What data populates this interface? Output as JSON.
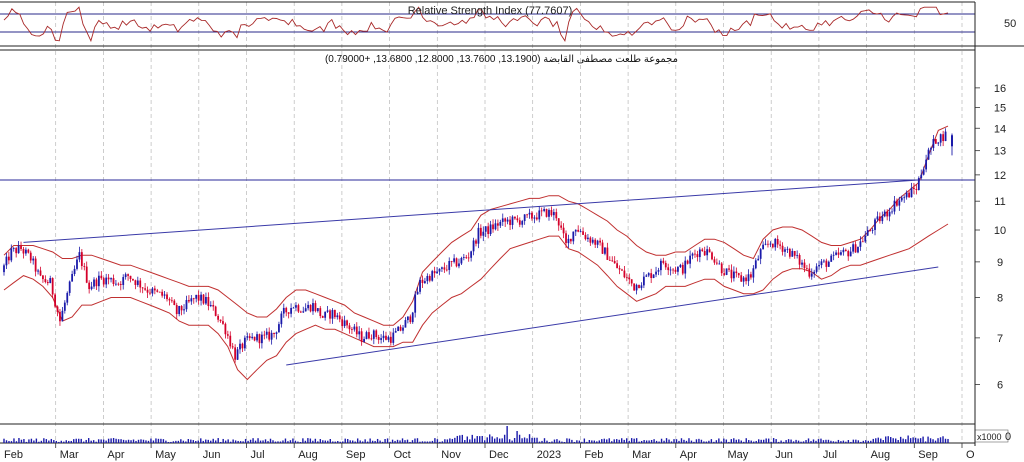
{
  "chart_data": {
    "type": "candlestick",
    "rsi_panel": {
      "title": "Relative Strength Index (77.7607)",
      "value": 77.7607,
      "level_tick": "50",
      "ylim": [
        0,
        100
      ],
      "levels": [
        30,
        70
      ]
    },
    "price_panel": {
      "title": "مجموعة طلعت مصطفى القابضة (13.1900, 13.7600, 12.8000, 13.6800, +0.79000)",
      "last_bar": {
        "open": 13.19,
        "high": 13.76,
        "low": 12.8,
        "close": 13.68,
        "change": 0.79
      },
      "scale": "log",
      "ylim": [
        5.3,
        17.2
      ],
      "y_ticks": [
        "16",
        "15",
        "14",
        "13",
        "12",
        "11",
        "10",
        "9",
        "8",
        "7",
        "6"
      ],
      "horizontal_line": 11.8,
      "trendlines": [
        {
          "name": "upper",
          "from": [
            2,
            9.6
          ],
          "to": [
            94,
            11.8
          ]
        },
        {
          "name": "lower",
          "from": [
            29,
            6.4
          ],
          "to": [
            96,
            8.85
          ]
        }
      ],
      "closes": [
        8.7,
        9.3,
        9.4,
        9.1,
        8.5,
        8.4,
        7.4,
        8.3,
        9.2,
        8.3,
        8.5,
        8.5,
        8.4,
        8.6,
        8.4,
        8.2,
        8.1,
        8.0,
        7.6,
        7.8,
        8.0,
        7.9,
        7.6,
        7.2,
        6.6,
        6.9,
        7.0,
        7.0,
        7.1,
        7.6,
        7.8,
        7.7,
        7.8,
        7.5,
        7.6,
        7.4,
        7.2,
        7.0,
        7.1,
        7.0,
        7.0,
        7.2,
        7.5,
        8.4,
        8.6,
        8.7,
        8.9,
        9.0,
        9.2,
        9.9,
        10.0,
        10.2,
        10.3,
        10.3,
        10.4,
        10.5,
        10.6,
        10.5,
        9.5,
        10.1,
        9.8,
        9.6,
        9.3,
        8.9,
        8.6,
        8.3,
        8.5,
        8.7,
        9.0,
        8.8,
        8.8,
        9.2,
        9.4,
        9.2,
        8.8,
        8.6,
        8.5,
        8.6,
        9.3,
        9.6,
        9.5,
        9.3,
        9.0,
        8.7,
        8.9,
        9.0,
        9.2,
        9.3,
        9.5,
        9.9,
        10.3,
        10.6,
        11.0,
        11.2,
        11.5,
        12.7,
        13.5,
        13.7
      ],
      "bollinger_upper": [
        9.2,
        9.5,
        9.5,
        9.5,
        9.4,
        9.3,
        9.1,
        9.1,
        9.2,
        9.2,
        9.1,
        9.0,
        8.9,
        8.9,
        8.8,
        8.7,
        8.6,
        8.5,
        8.4,
        8.3,
        8.3,
        8.3,
        8.2,
        8.0,
        7.8,
        7.6,
        7.5,
        7.5,
        7.7,
        8.0,
        8.2,
        8.2,
        8.1,
        8.0,
        7.9,
        7.8,
        7.6,
        7.5,
        7.4,
        7.3,
        7.3,
        7.5,
        7.9,
        8.7,
        9.0,
        9.3,
        9.6,
        9.8,
        10.0,
        10.5,
        10.7,
        10.8,
        10.9,
        11.0,
        11.1,
        11.1,
        11.2,
        11.2,
        11.0,
        10.9,
        10.7,
        10.5,
        10.3,
        10.0,
        9.8,
        9.5,
        9.3,
        9.2,
        9.2,
        9.3,
        9.3,
        9.5,
        9.7,
        9.7,
        9.6,
        9.4,
        9.2,
        9.1,
        9.7,
        10.0,
        10.1,
        10.1,
        10.0,
        9.8,
        9.6,
        9.5,
        9.5,
        9.6,
        9.7,
        10.0,
        10.4,
        10.7,
        11.1,
        11.4,
        11.7,
        12.8,
        13.9,
        14.1
      ],
      "bollinger_lower": [
        8.2,
        8.4,
        8.6,
        8.5,
        8.3,
        8.0,
        7.4,
        7.5,
        7.8,
        7.8,
        7.9,
        8.0,
        8.0,
        8.0,
        7.9,
        7.8,
        7.7,
        7.6,
        7.4,
        7.3,
        7.3,
        7.3,
        7.1,
        6.8,
        6.3,
        6.1,
        6.3,
        6.5,
        6.6,
        6.9,
        7.1,
        7.2,
        7.3,
        7.2,
        7.2,
        7.1,
        7.0,
        6.9,
        6.8,
        6.8,
        6.8,
        6.9,
        6.9,
        7.3,
        7.6,
        7.8,
        8.0,
        8.1,
        8.3,
        8.5,
        8.8,
        9.1,
        9.4,
        9.5,
        9.6,
        9.7,
        9.8,
        9.8,
        9.4,
        9.3,
        9.1,
        8.9,
        8.6,
        8.3,
        8.1,
        7.9,
        8.0,
        8.1,
        8.3,
        8.3,
        8.3,
        8.4,
        8.5,
        8.5,
        8.3,
        8.2,
        8.1,
        8.1,
        8.2,
        8.5,
        8.7,
        8.8,
        8.8,
        8.7,
        8.5,
        8.6,
        8.8,
        8.9,
        8.9,
        9.0,
        9.1,
        9.2,
        9.3,
        9.4,
        9.6,
        9.8,
        10.0,
        10.2
      ]
    },
    "volume_panel": {
      "multiplier_label": "x1000",
      "level_tick": "0"
    },
    "x_axis": {
      "months": [
        "Feb",
        "Mar",
        "Apr",
        "May",
        "Jun",
        "Jul",
        "Aug",
        "Sep",
        "Oct",
        "Nov",
        "Dec",
        "2023",
        "Feb",
        "Mar",
        "Apr",
        "May",
        "Jun",
        "Jul",
        "Aug",
        "Sep",
        "O"
      ]
    },
    "colors": {
      "up": "#1a1aaa",
      "down": "#d4002a",
      "bollinger": "#c03030",
      "rsi": "#a82828",
      "trendline": "#3a3aa8",
      "volume": "#1a1aaa",
      "grid": "#b8b8b8"
    },
    "grid": "vertical-dashed"
  }
}
